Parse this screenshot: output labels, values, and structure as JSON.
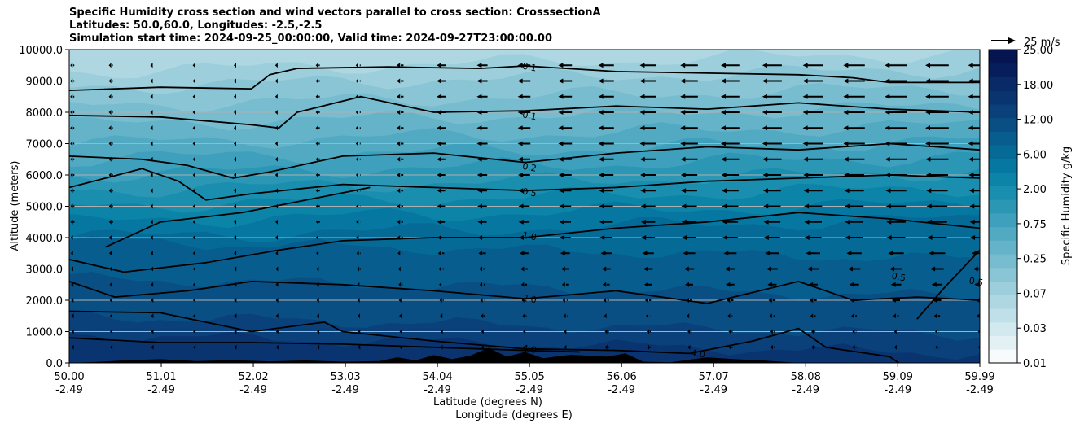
{
  "title_lines": [
    "Specific Humidity cross section and wind vectors parallel to cross section: CrosssectionA",
    "Latitudes: 50.0,60.0, Longitudes: -2.5,-2.5",
    "Simulation start time: 2024-09-25_00:00:00, Valid time: 2024-09-27T23:00:00.00"
  ],
  "quiver_key": {
    "label": "25 m/s"
  },
  "chart_data": {
    "type": "heatmap",
    "title": "Specific Humidity cross section and wind vectors parallel to cross section: CrosssectionA",
    "xlabel": "Latitude (degrees N)",
    "xlabel2": "Longitude (degrees E)",
    "ylabel": "Altitude (meters)",
    "xlim": [
      50.0,
      59.99
    ],
    "ylim": [
      0,
      10000
    ],
    "grid": "horizontal",
    "x_ticks": [
      {
        "lat": "50.00",
        "lon": "-2.49"
      },
      {
        "lat": "51.01",
        "lon": "-2.49"
      },
      {
        "lat": "52.02",
        "lon": "-2.49"
      },
      {
        "lat": "53.03",
        "lon": "-2.49"
      },
      {
        "lat": "54.04",
        "lon": "-2.49"
      },
      {
        "lat": "55.05",
        "lon": "-2.49"
      },
      {
        "lat": "56.06",
        "lon": "-2.49"
      },
      {
        "lat": "57.07",
        "lon": "-2.49"
      },
      {
        "lat": "58.08",
        "lon": "-2.49"
      },
      {
        "lat": "59.09",
        "lon": "-2.49"
      },
      {
        "lat": "59.99",
        "lon": "-2.49"
      }
    ],
    "y_ticks": [
      "0.0",
      "1000.0",
      "2000.0",
      "3000.0",
      "4000.0",
      "5000.0",
      "6000.0",
      "7000.0",
      "8000.0",
      "9000.0",
      "10000.0"
    ],
    "colorbar": {
      "label": "Specific Humidity g/kg",
      "levels": [
        "0.01",
        "0.03",
        "0.07",
        "0.25",
        "0.75",
        "2.00",
        "6.00",
        "12.00",
        "18.00",
        "25.00"
      ],
      "colors": [
        "#f7fbfc",
        "#e4f1f4",
        "#d2e9ef",
        "#bfe0e8",
        "#aed7e2",
        "#9ccfdb",
        "#89c5d5",
        "#77bccf",
        "#64b3c9",
        "#51aac2",
        "#3ea0bc",
        "#2b97b5",
        "#1a8eaf",
        "#0b84a8",
        "#0677a0",
        "#066a97",
        "#075e8e",
        "#094f84",
        "#0a417a",
        "#0a3470",
        "#082a66",
        "#061f5c",
        "#051552"
      ]
    },
    "contour_labels": [
      {
        "text": "0.1",
        "lat": 55.05,
        "alt": 9450
      },
      {
        "text": "0.1",
        "lat": 55.05,
        "alt": 7900
      },
      {
        "text": "0.2",
        "lat": 55.05,
        "alt": 6250
      },
      {
        "text": "0.5",
        "lat": 55.05,
        "alt": 5450
      },
      {
        "text": "1.0",
        "lat": 55.05,
        "alt": 4050
      },
      {
        "text": "2.0",
        "lat": 55.05,
        "alt": 2050
      },
      {
        "text": "4.0",
        "lat": 55.05,
        "alt": 450
      },
      {
        "text": "4.0",
        "lat": 56.9,
        "alt": 300
      },
      {
        "text": "0.5",
        "lat": 59.1,
        "alt": 2750
      },
      {
        "text": "0.5",
        "lat": 59.95,
        "alt": 2600
      }
    ],
    "contours": [
      {
        "level": "0.1",
        "points": [
          [
            50.0,
            8700
          ],
          [
            51.0,
            8800
          ],
          [
            52.0,
            8750
          ],
          [
            52.2,
            9200
          ],
          [
            52.5,
            9400
          ],
          [
            53.5,
            9450
          ],
          [
            54.5,
            9400
          ],
          [
            55.0,
            9480
          ],
          [
            56.0,
            9300
          ],
          [
            57.0,
            9250
          ],
          [
            58.0,
            9200
          ],
          [
            58.6,
            9100
          ],
          [
            59.0,
            8950
          ],
          [
            59.99,
            8950
          ]
        ]
      },
      {
        "level": "0.1",
        "points": [
          [
            50.0,
            7900
          ],
          [
            51.0,
            7850
          ],
          [
            52.0,
            7600
          ],
          [
            52.3,
            7500
          ],
          [
            52.5,
            8000
          ],
          [
            53.2,
            8500
          ],
          [
            54.0,
            8000
          ],
          [
            55.0,
            8050
          ],
          [
            56.0,
            8200
          ],
          [
            57.0,
            8100
          ],
          [
            58.0,
            8300
          ],
          [
            59.0,
            8100
          ],
          [
            59.99,
            8000
          ]
        ]
      },
      {
        "level": "0.2",
        "points": [
          [
            50.0,
            6600
          ],
          [
            50.8,
            6500
          ],
          [
            51.3,
            6300
          ],
          [
            51.8,
            5900
          ],
          [
            52.2,
            6100
          ],
          [
            53.0,
            6600
          ],
          [
            54.0,
            6700
          ],
          [
            55.0,
            6400
          ],
          [
            56.0,
            6700
          ],
          [
            57.0,
            6900
          ],
          [
            58.0,
            6800
          ],
          [
            59.0,
            7000
          ],
          [
            59.99,
            6800
          ]
        ]
      },
      {
        "level": "0.5",
        "points": [
          [
            50.0,
            5600
          ],
          [
            50.8,
            6200
          ],
          [
            51.2,
            5800
          ],
          [
            51.5,
            5200
          ],
          [
            52.0,
            5400
          ],
          [
            53.0,
            5700
          ],
          [
            54.0,
            5600
          ],
          [
            55.0,
            5500
          ],
          [
            56.0,
            5600
          ],
          [
            57.0,
            5800
          ],
          [
            58.0,
            5900
          ],
          [
            59.0,
            6000
          ],
          [
            59.99,
            5900
          ]
        ]
      },
      {
        "level": "0.5",
        "points": [
          [
            50.4,
            3700
          ],
          [
            51.0,
            4500
          ],
          [
            51.9,
            4800
          ],
          [
            52.6,
            5200
          ],
          [
            53.3,
            5600
          ]
        ]
      },
      {
        "level": "1.0",
        "points": [
          [
            50.0,
            3300
          ],
          [
            50.6,
            2900
          ],
          [
            51.5,
            3200
          ],
          [
            52.3,
            3600
          ],
          [
            53.0,
            3900
          ],
          [
            54.0,
            4000
          ],
          [
            55.0,
            4000
          ],
          [
            56.0,
            4300
          ],
          [
            57.0,
            4500
          ],
          [
            58.0,
            4800
          ],
          [
            59.0,
            4600
          ],
          [
            59.99,
            4300
          ]
        ]
      },
      {
        "level": "2.0",
        "points": [
          [
            50.0,
            2600
          ],
          [
            50.5,
            2100
          ],
          [
            51.3,
            2300
          ],
          [
            52.0,
            2600
          ],
          [
            53.0,
            2500
          ],
          [
            54.0,
            2300
          ],
          [
            55.0,
            2050
          ],
          [
            56.0,
            2300
          ],
          [
            57.0,
            1900
          ],
          [
            58.0,
            2600
          ],
          [
            58.6,
            2000
          ],
          [
            59.3,
            2100
          ],
          [
            59.99,
            2000
          ]
        ]
      },
      {
        "level": "0.5",
        "points": [
          [
            59.3,
            1400
          ],
          [
            59.6,
            2400
          ],
          [
            59.99,
            3600
          ]
        ]
      },
      {
        "level": "4.0",
        "points": [
          [
            50.0,
            1650
          ],
          [
            51.0,
            1600
          ],
          [
            52.0,
            1000
          ],
          [
            52.8,
            1300
          ],
          [
            53.0,
            1000
          ],
          [
            54.0,
            700
          ],
          [
            55.0,
            450
          ],
          [
            56.0,
            400
          ],
          [
            56.8,
            300
          ],
          [
            57.5,
            700
          ],
          [
            58.0,
            1100
          ],
          [
            58.3,
            500
          ],
          [
            59.0,
            200
          ],
          [
            59.1,
            0
          ]
        ]
      },
      {
        "level": "4.0",
        "points": [
          [
            50.0,
            800
          ],
          [
            51.0,
            650
          ],
          [
            52.0,
            650
          ],
          [
            53.0,
            600
          ],
          [
            54.0,
            500
          ],
          [
            55.0,
            400
          ],
          [
            55.6,
            350
          ]
        ]
      }
    ],
    "terrain": [
      [
        50.0,
        0
      ],
      [
        50.3,
        30
      ],
      [
        50.6,
        80
      ],
      [
        51.0,
        120
      ],
      [
        51.4,
        60
      ],
      [
        51.8,
        90
      ],
      [
        52.2,
        50
      ],
      [
        52.6,
        80
      ],
      [
        53.0,
        40
      ],
      [
        53.4,
        60
      ],
      [
        53.6,
        180
      ],
      [
        53.8,
        80
      ],
      [
        54.0,
        250
      ],
      [
        54.2,
        120
      ],
      [
        54.4,
        230
      ],
      [
        54.6,
        480
      ],
      [
        54.8,
        200
      ],
      [
        55.0,
        350
      ],
      [
        55.2,
        150
      ],
      [
        55.5,
        260
      ],
      [
        55.9,
        200
      ],
      [
        56.1,
        300
      ],
      [
        56.3,
        40
      ],
      [
        56.6,
        20
      ],
      [
        56.8,
        100
      ],
      [
        57.0,
        180
      ],
      [
        57.3,
        120
      ],
      [
        57.6,
        80
      ],
      [
        58.0,
        0
      ],
      [
        59.99,
        0
      ]
    ],
    "wind": {
      "unit": "m/s",
      "reference": 25,
      "x": [
        50.0,
        50.45,
        50.9,
        51.36,
        51.81,
        52.27,
        52.72,
        53.17,
        53.63,
        54.08,
        54.53,
        54.99,
        55.44,
        55.89,
        56.35,
        56.8,
        57.25,
        57.71,
        58.16,
        58.61,
        59.07,
        59.52,
        59.99
      ],
      "alt": [
        9500,
        9000,
        8500,
        8000,
        7500,
        7000,
        6500,
        6000,
        5500,
        5000,
        4500,
        4000,
        3500,
        3000,
        2500,
        2000,
        1500,
        1000,
        500
      ],
      "u_profile_upper": [
        -3,
        -3,
        -2,
        -1,
        -1,
        -2,
        -3,
        -5,
        -7,
        -9,
        -11,
        -13,
        -14,
        -16,
        -17,
        -18,
        -19,
        -20,
        -21,
        -22,
        -23,
        -24,
        -24
      ],
      "u_lower_scale": 0.25
    }
  }
}
